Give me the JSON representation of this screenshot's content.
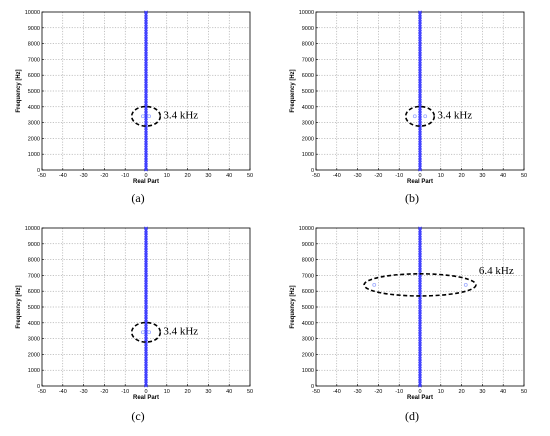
{
  "chart_data": [
    {
      "type": "scatter",
      "panel_label": "(a)",
      "xlabel": "Real Part",
      "ylabel": "Frequency [Hz]",
      "xlim": [
        -50,
        50
      ],
      "ylim": [
        0,
        10000
      ],
      "x_ticks": [
        -50,
        -40,
        -30,
        -20,
        -10,
        0,
        10,
        20,
        30,
        40,
        50
      ],
      "y_ticks": [
        0,
        1000,
        2000,
        3000,
        4000,
        5000,
        6000,
        7000,
        8000,
        9000,
        10000
      ],
      "grid": true,
      "annotation": {
        "text": "3.4 kHz",
        "center": [
          0,
          3400
        ],
        "radius": [
          4,
          620
        ]
      },
      "columns": [
        {
          "x": 0,
          "y_min": 0,
          "y_max": 10000
        }
      ],
      "points": [
        {
          "x": -1.5,
          "y": 3400
        },
        {
          "x": 1.5,
          "y": 3400
        }
      ]
    },
    {
      "type": "scatter",
      "panel_label": "(b)",
      "xlabel": "Real Part",
      "ylabel": "Frequency [Hz]",
      "xlim": [
        -50,
        50
      ],
      "ylim": [
        0,
        10000
      ],
      "x_ticks": [
        -50,
        -40,
        -30,
        -20,
        -10,
        0,
        10,
        20,
        30,
        40,
        50
      ],
      "y_ticks": [
        0,
        1000,
        2000,
        3000,
        4000,
        5000,
        6000,
        7000,
        8000,
        9000,
        10000
      ],
      "grid": true,
      "annotation": {
        "text": "3.4 kHz",
        "center": [
          0,
          3400
        ],
        "radius": [
          4,
          620
        ]
      },
      "columns": [
        {
          "x": 0,
          "y_min": 0,
          "y_max": 10000
        }
      ],
      "points": [
        {
          "x": -2.5,
          "y": 3400
        },
        {
          "x": 2.5,
          "y": 3400
        }
      ]
    },
    {
      "type": "scatter",
      "panel_label": "(c)",
      "xlabel": "Real Part",
      "ylabel": "Frequency [Hz]",
      "xlim": [
        -50,
        50
      ],
      "ylim": [
        0,
        10000
      ],
      "x_ticks": [
        -50,
        -40,
        -30,
        -20,
        -10,
        0,
        10,
        20,
        30,
        40,
        50
      ],
      "y_ticks": [
        0,
        1000,
        2000,
        3000,
        4000,
        5000,
        6000,
        7000,
        8000,
        9000,
        10000
      ],
      "grid": true,
      "annotation": {
        "text": "3.4 kHz",
        "center": [
          0,
          3400
        ],
        "radius": [
          4,
          620
        ]
      },
      "columns": [
        {
          "x": 0,
          "y_min": 0,
          "y_max": 10000
        }
      ],
      "points": [
        {
          "x": -1.5,
          "y": 3400
        },
        {
          "x": 1.5,
          "y": 3400
        }
      ]
    },
    {
      "type": "scatter",
      "panel_label": "(d)",
      "xlabel": "Real Part",
      "ylabel": "Frequency [Hz]",
      "xlim": [
        -50,
        50
      ],
      "ylim": [
        0,
        10000
      ],
      "x_ticks": [
        -50,
        -40,
        -30,
        -20,
        -10,
        0,
        10,
        20,
        30,
        40,
        50
      ],
      "y_ticks": [
        0,
        1000,
        2000,
        3000,
        4000,
        5000,
        6000,
        7000,
        8000,
        9000,
        10000
      ],
      "grid": true,
      "annotation": {
        "text": "6.4 kHz",
        "center": [
          0,
          6400
        ],
        "radius": [
          24,
          700
        ]
      },
      "columns": [
        {
          "x": 0,
          "y_min": 0,
          "y_max": 10000
        }
      ],
      "points": [
        {
          "x": -22,
          "y": 6400
        },
        {
          "x": 22,
          "y": 6400
        }
      ]
    }
  ],
  "colors": {
    "marker": "#3a3aff",
    "marker_light": "#9aa8ff",
    "frame": "#000000",
    "grid": "#8a8a8a"
  }
}
